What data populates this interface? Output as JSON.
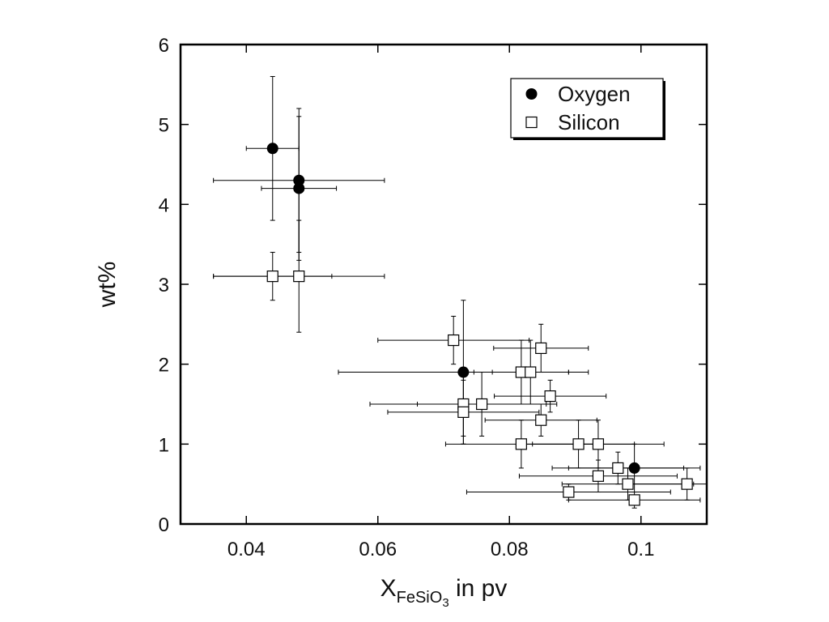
{
  "chart_data": {
    "type": "scatter",
    "xlabel": {
      "main": "X",
      "sub": "FeSiO",
      "subsub": "3",
      "rest": " in pv"
    },
    "ylabel": "wt%",
    "xlim": [
      0.03,
      0.11
    ],
    "ylim": [
      0,
      6
    ],
    "xticks": [
      0.04,
      0.06,
      0.08,
      0.1
    ],
    "xtick_labels": [
      "0.04",
      "0.06",
      "0.08",
      "0.1"
    ],
    "yticks": [
      0,
      1,
      2,
      3,
      4,
      5,
      6
    ],
    "ytick_labels": [
      "0",
      "1",
      "2",
      "3",
      "4",
      "5",
      "6"
    ],
    "grid": false,
    "legend_position": "top-right",
    "series": [
      {
        "name": "Oxygen",
        "marker": "filled-circle",
        "color": "#000000",
        "points": [
          {
            "x": 0.044,
            "y": 4.7,
            "xerr": 0.004,
            "yerr": 0.9
          },
          {
            "x": 0.048,
            "y": 4.3,
            "xerr": 0.013,
            "yerr": 0.9
          },
          {
            "x": 0.048,
            "y": 4.2,
            "xerr": 0.0057,
            "yerr": 0.9
          },
          {
            "x": 0.073,
            "y": 1.9,
            "xerr": 0.019,
            "yerr": 0.9
          },
          {
            "x": 0.099,
            "y": 0.7,
            "xerr": 0.01,
            "yerr": 0.3
          }
        ]
      },
      {
        "name": "Silicon",
        "marker": "open-square",
        "color": "#000000",
        "points": [
          {
            "x": 0.044,
            "y": 3.1,
            "xerr": 0.009,
            "yerr": 0.3
          },
          {
            "x": 0.048,
            "y": 3.1,
            "xerr": 0.013,
            "yerr": 0.7
          },
          {
            "x": 0.0715,
            "y": 2.3,
            "xerr": 0.0115,
            "yerr": 0.3
          },
          {
            "x": 0.0848,
            "y": 2.2,
            "xerr": 0.0072,
            "yerr": 0.3
          },
          {
            "x": 0.0818,
            "y": 1.9,
            "xerr": 0.0072,
            "yerr": 0.4
          },
          {
            "x": 0.0832,
            "y": 1.9,
            "xerr": 0.0058,
            "yerr": 0.4
          },
          {
            "x": 0.073,
            "y": 1.5,
            "xerr": 0.0142,
            "yerr": 0.4
          },
          {
            "x": 0.0758,
            "y": 1.5,
            "xerr": 0.0098,
            "yerr": 0.4
          },
          {
            "x": 0.073,
            "y": 1.4,
            "xerr": 0.0115,
            "yerr": 0.4
          },
          {
            "x": 0.0862,
            "y": 1.6,
            "xerr": 0.0085,
            "yerr": 0.2
          },
          {
            "x": 0.0848,
            "y": 1.3,
            "xerr": 0.0085,
            "yerr": 0.2
          },
          {
            "x": 0.0818,
            "y": 1.0,
            "xerr": 0.0115,
            "yerr": 0.3
          },
          {
            "x": 0.0905,
            "y": 1.0,
            "xerr": 0.0085,
            "yerr": 0.3
          },
          {
            "x": 0.0935,
            "y": 1.0,
            "xerr": 0.01,
            "yerr": 0.3
          },
          {
            "x": 0.0965,
            "y": 0.7,
            "xerr": 0.01,
            "yerr": 0.2
          },
          {
            "x": 0.0935,
            "y": 0.6,
            "xerr": 0.012,
            "yerr": 0.2
          },
          {
            "x": 0.098,
            "y": 0.5,
            "xerr": 0.01,
            "yerr": 0.2
          },
          {
            "x": 0.107,
            "y": 0.5,
            "xerr": 0.0085,
            "yerr": 0.2
          },
          {
            "x": 0.089,
            "y": 0.4,
            "xerr": 0.0155,
            "yerr": 0.1
          },
          {
            "x": 0.099,
            "y": 0.3,
            "xerr": 0.01,
            "yerr": 0.1
          }
        ]
      }
    ]
  }
}
